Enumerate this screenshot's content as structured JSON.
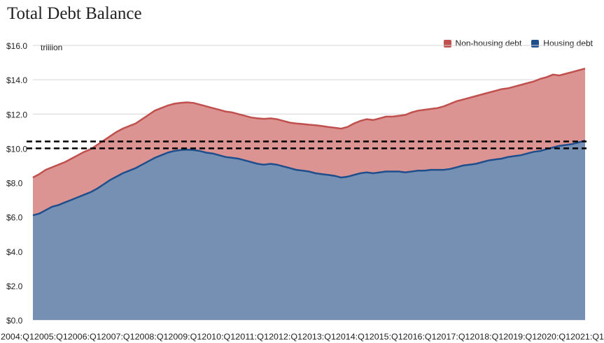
{
  "chart_data": {
    "type": "area",
    "title": "Total Debt Balance",
    "y_unit": "trillion",
    "ylim": [
      0,
      16
    ],
    "y_ticks": [
      "$0.0",
      "$2.0",
      "$4.0",
      "$6.0",
      "$8.0",
      "$10.0",
      "$12.0",
      "$14.0",
      "$16.0"
    ],
    "x_ticks": [
      "2004:Q1",
      "2005:Q1",
      "2006:Q1",
      "2007:Q1",
      "2008:Q1",
      "2009:Q1",
      "2010:Q1",
      "2011:Q1",
      "2012:Q1",
      "2013:Q1",
      "2014:Q1",
      "2015:Q1",
      "2016:Q1",
      "2017:Q1",
      "2018:Q1",
      "2019:Q1",
      "2020:Q1",
      "2021:Q1"
    ],
    "grid": true,
    "legend_position": "top-right",
    "stacked": true,
    "reference_lines": [
      10.0,
      10.4
    ],
    "series": [
      {
        "name": "Housing debt",
        "color": "#1f4e8c",
        "fill": "#7590b3",
        "values": [
          6.1,
          6.2,
          6.4,
          6.6,
          6.7,
          6.85,
          7.0,
          7.15,
          7.3,
          7.45,
          7.65,
          7.9,
          8.15,
          8.35,
          8.55,
          8.7,
          8.85,
          9.05,
          9.25,
          9.45,
          9.6,
          9.75,
          9.85,
          9.9,
          9.92,
          9.9,
          9.85,
          9.75,
          9.7,
          9.6,
          9.5,
          9.45,
          9.4,
          9.3,
          9.2,
          9.1,
          9.05,
          9.1,
          9.05,
          8.95,
          8.85,
          8.75,
          8.7,
          8.65,
          8.55,
          8.5,
          8.45,
          8.4,
          8.3,
          8.35,
          8.45,
          8.55,
          8.6,
          8.55,
          8.6,
          8.65,
          8.65,
          8.65,
          8.6,
          8.65,
          8.7,
          8.7,
          8.75,
          8.75,
          8.75,
          8.8,
          8.9,
          9.0,
          9.05,
          9.1,
          9.2,
          9.3,
          9.35,
          9.4,
          9.5,
          9.55,
          9.6,
          9.7,
          9.8,
          9.85,
          9.95,
          10.05,
          10.15,
          10.2,
          10.25,
          10.35,
          10.45
        ]
      },
      {
        "name": "Non-housing debt",
        "color": "#c0504d",
        "fill": "#dc9493",
        "total_values": [
          8.3,
          8.5,
          8.75,
          8.9,
          9.05,
          9.2,
          9.4,
          9.6,
          9.8,
          9.95,
          10.2,
          10.45,
          10.7,
          10.95,
          11.15,
          11.3,
          11.45,
          11.7,
          11.95,
          12.2,
          12.35,
          12.5,
          12.6,
          12.65,
          12.68,
          12.65,
          12.55,
          12.45,
          12.35,
          12.25,
          12.15,
          12.1,
          12.0,
          11.9,
          11.8,
          11.75,
          11.72,
          11.75,
          11.7,
          11.6,
          11.5,
          11.45,
          11.42,
          11.38,
          11.35,
          11.3,
          11.25,
          11.2,
          11.15,
          11.25,
          11.45,
          11.6,
          11.7,
          11.65,
          11.75,
          11.85,
          11.85,
          11.9,
          11.95,
          12.1,
          12.2,
          12.25,
          12.3,
          12.35,
          12.45,
          12.6,
          12.75,
          12.85,
          12.95,
          13.05,
          13.15,
          13.25,
          13.35,
          13.45,
          13.5,
          13.6,
          13.7,
          13.8,
          13.9,
          14.05,
          14.15,
          14.3,
          14.25,
          14.35,
          14.45,
          14.55,
          14.65
        ]
      }
    ]
  }
}
